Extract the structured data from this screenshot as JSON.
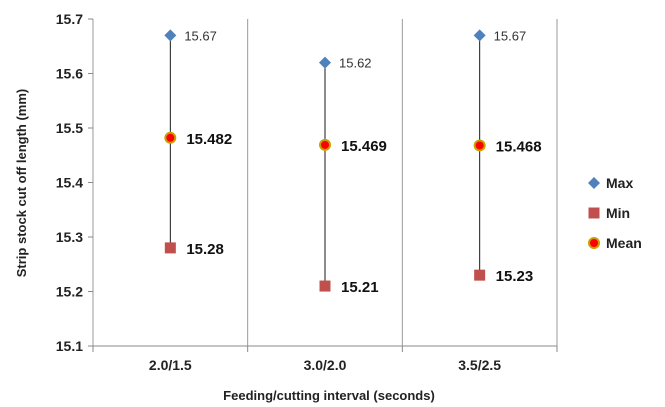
{
  "chart_data": {
    "type": "scatter",
    "xlabel": "Feeding/cutting  interval (seconds)",
    "ylabel": "Strip stock cut off length (mm)",
    "ylim": [
      15.1,
      15.7
    ],
    "yticks": [
      "15.1",
      "15.2",
      "15.3",
      "15.4",
      "15.5",
      "15.6",
      "15.7"
    ],
    "categories": [
      "2.0/1.5",
      "3.0/2.0",
      "3.5/2.5"
    ],
    "grid": "vertical",
    "legend_position": "right",
    "series": [
      {
        "name": "Max",
        "marker": "diamond",
        "color": "#4f81bd",
        "values": [
          15.67,
          15.62,
          15.67
        ],
        "labels": [
          "15.67",
          "15.62",
          "15.67"
        ]
      },
      {
        "name": "Min",
        "marker": "square",
        "color": "#c0504d",
        "values": [
          15.28,
          15.21,
          15.23
        ],
        "labels": [
          "15.28",
          "15.21",
          "15.23"
        ]
      },
      {
        "name": "Mean",
        "marker": "circle",
        "color": "#ff0000",
        "edge": "#c8a000",
        "values": [
          15.482,
          15.469,
          15.468
        ],
        "labels": [
          "15.482",
          "15.469",
          "15.468"
        ]
      }
    ]
  }
}
